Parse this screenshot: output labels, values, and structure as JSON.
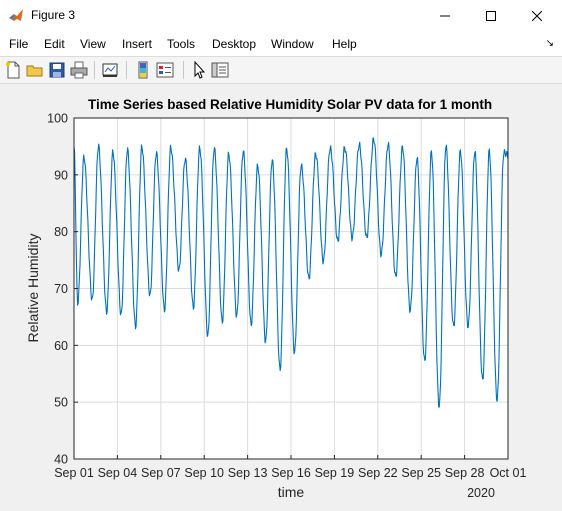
{
  "window": {
    "title": "Figure 3",
    "icon": "matlab-icon",
    "controls": [
      "minimize-icon",
      "maximize-icon",
      "close-icon"
    ]
  },
  "menubar": {
    "items": [
      "File",
      "Edit",
      "View",
      "Insert",
      "Tools",
      "Desktop",
      "Window",
      "Help"
    ]
  },
  "toolbar": {
    "buttons": [
      "new-figure-icon",
      "open-file-icon",
      "save-icon",
      "print-icon",
      "link-plot-icon",
      "insert-colorbar-icon",
      "insert-legend-icon",
      "edit-plot-icon",
      "property-inspector-icon"
    ]
  },
  "colors": {
    "line": "#0072bd",
    "grid": "#dcdcdc",
    "axes_background": "#ffffff",
    "figure_background": "#f0f0f0"
  },
  "chart_data": {
    "type": "line",
    "title": "Time Series based Relative Humidity Solar PV data for 1 month",
    "xlabel": "time",
    "ylabel": "Relative Humidity",
    "x_secondary_label": "2020",
    "xlim": [
      "2020-09-01",
      "2020-10-01"
    ],
    "ylim": [
      40,
      100
    ],
    "yticks": [
      40,
      50,
      60,
      70,
      80,
      90,
      100
    ],
    "xtick_labels": [
      "Sep 01",
      "Sep 04",
      "Sep 07",
      "Sep 10",
      "Sep 13",
      "Sep 16",
      "Sep 19",
      "Sep 22",
      "Sep 25",
      "Sep 28",
      "Oct 01"
    ],
    "grid": true,
    "series": [
      {
        "daily_max": [
          93,
          95,
          94,
          94.5,
          95,
          94,
          95,
          93,
          95,
          95,
          94,
          94.5,
          92,
          93,
          95,
          92,
          94,
          95,
          95,
          95.5,
          96.5,
          95.5,
          95,
          93,
          94,
          95,
          94,
          94,
          94,
          93.5
        ],
        "daily_min": [
          67.5,
          68,
          66,
          65.5,
          63.5,
          69,
          66.5,
          73.5,
          67,
          62,
          64.5,
          65.5,
          64,
          61,
          56,
          59,
          72,
          75,
          78.5,
          79,
          79,
          76,
          72,
          66,
          57,
          49,
          63,
          63,
          53.5,
          50
        ],
        "start_value": 95,
        "end_value": 94
      }
    ]
  }
}
